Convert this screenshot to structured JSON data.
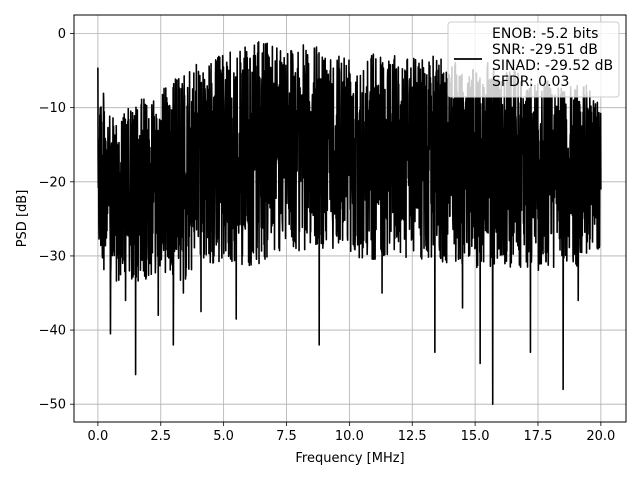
{
  "chart_data": {
    "type": "line",
    "title": "",
    "xlabel": "Frequency [MHz]",
    "ylabel": "PSD [dB]",
    "xlim": [
      -0.95,
      21.0
    ],
    "ylim": [
      -52.4,
      2.5
    ],
    "xticks": [
      0.0,
      2.5,
      5.0,
      7.5,
      10.0,
      12.5,
      15.0,
      17.5,
      20.0
    ],
    "xtick_labels": [
      "0.0",
      "2.5",
      "5.0",
      "7.5",
      "10.0",
      "12.5",
      "15.0",
      "17.5",
      "20.0"
    ],
    "yticks": [
      0,
      -10,
      -20,
      -30,
      -40,
      -50
    ],
    "ytick_labels": [
      "0",
      "−10",
      "−20",
      "−30",
      "−40",
      "−50"
    ],
    "grid": true,
    "legend_position": "top-right",
    "series": [
      {
        "name": "ENOB: -5.2 bits\nSNR: -29.51 dB\nSINAD: -29.52 dB\nSFDR: 0.03",
        "color": "#000000",
        "note_envelope": "dense noise trace spanning 0 to 20 MHz; upper envelope and lower envelope plus deep notches listed below",
        "upper_envelope": [
          [
            0.0,
            -4.6
          ],
          [
            0.2,
            -7.5
          ],
          [
            0.5,
            -11.5
          ],
          [
            1.0,
            -10.5
          ],
          [
            1.5,
            -9.5
          ],
          [
            2.0,
            -8.0
          ],
          [
            2.5,
            -7.5
          ],
          [
            3.0,
            -6.0
          ],
          [
            3.5,
            -5.0
          ],
          [
            4.0,
            -4.0
          ],
          [
            4.5,
            -3.5
          ],
          [
            5.0,
            -2.5
          ],
          [
            5.5,
            -2.5
          ],
          [
            6.0,
            -1.5
          ],
          [
            6.5,
            -1.0
          ],
          [
            7.0,
            -0.5
          ],
          [
            7.5,
            -1.0
          ],
          [
            8.0,
            -1.5
          ],
          [
            8.5,
            -1.5
          ],
          [
            9.0,
            -2.0
          ],
          [
            9.5,
            -2.0
          ],
          [
            10.0,
            -2.0
          ],
          [
            10.5,
            -2.5
          ],
          [
            11.0,
            -2.0
          ],
          [
            11.5,
            -2.5
          ],
          [
            12.0,
            -3.0
          ],
          [
            12.5,
            -3.0
          ],
          [
            13.0,
            -3.0
          ],
          [
            13.5,
            -3.0
          ],
          [
            14.0,
            -2.5
          ],
          [
            14.5,
            -4.0
          ],
          [
            15.0,
            -5.0
          ],
          [
            15.5,
            -3.5
          ],
          [
            16.0,
            -5.0
          ],
          [
            16.5,
            -4.5
          ],
          [
            17.0,
            -6.5
          ],
          [
            17.5,
            -6.0
          ],
          [
            18.0,
            -6.5
          ],
          [
            18.5,
            -7.5
          ],
          [
            19.0,
            -6.5
          ],
          [
            19.5,
            -7.0
          ],
          [
            20.0,
            -8.5
          ]
        ],
        "lower_envelope": [
          [
            0.0,
            -30.0
          ],
          [
            0.5,
            -34.0
          ],
          [
            1.0,
            -33.5
          ],
          [
            1.5,
            -34.0
          ],
          [
            2.0,
            -33.0
          ],
          [
            2.5,
            -32.0
          ],
          [
            3.0,
            -33.0
          ],
          [
            3.5,
            -34.0
          ],
          [
            4.0,
            -31.0
          ],
          [
            4.5,
            -31.0
          ],
          [
            5.0,
            -31.0
          ],
          [
            5.5,
            -31.0
          ],
          [
            6.0,
            -31.5
          ],
          [
            6.5,
            -31.0
          ],
          [
            7.0,
            -30.0
          ],
          [
            7.5,
            -29.0
          ],
          [
            8.0,
            -29.5
          ],
          [
            8.5,
            -29.0
          ],
          [
            9.0,
            -29.0
          ],
          [
            9.5,
            -29.0
          ],
          [
            10.0,
            -29.5
          ],
          [
            10.5,
            -30.5
          ],
          [
            11.0,
            -30.5
          ],
          [
            11.5,
            -30.0
          ],
          [
            12.0,
            -30.0
          ],
          [
            12.5,
            -30.5
          ],
          [
            13.0,
            -31.0
          ],
          [
            13.5,
            -31.0
          ],
          [
            14.0,
            -31.5
          ],
          [
            14.5,
            -31.0
          ],
          [
            15.0,
            -32.0
          ],
          [
            15.5,
            -31.5
          ],
          [
            16.0,
            -32.0
          ],
          [
            16.5,
            -31.5
          ],
          [
            17.0,
            -32.0
          ],
          [
            17.5,
            -32.0
          ],
          [
            18.0,
            -32.0
          ],
          [
            18.5,
            -31.5
          ],
          [
            19.0,
            -31.5
          ],
          [
            19.5,
            -30.5
          ],
          [
            20.0,
            -29.0
          ]
        ],
        "notches": [
          [
            0.5,
            -40.5
          ],
          [
            1.1,
            -36.0
          ],
          [
            1.5,
            -46.0
          ],
          [
            2.4,
            -38.0
          ],
          [
            3.0,
            -42.0
          ],
          [
            3.4,
            -35.0
          ],
          [
            4.1,
            -37.5
          ],
          [
            5.5,
            -38.5
          ],
          [
            8.8,
            -42.0
          ],
          [
            11.3,
            -35.0
          ],
          [
            13.4,
            -43.0
          ],
          [
            14.5,
            -37.0
          ],
          [
            15.2,
            -44.5
          ],
          [
            15.7,
            -50.0
          ],
          [
            17.2,
            -43.0
          ],
          [
            18.5,
            -48.0
          ],
          [
            19.1,
            -36.0
          ]
        ]
      }
    ]
  }
}
